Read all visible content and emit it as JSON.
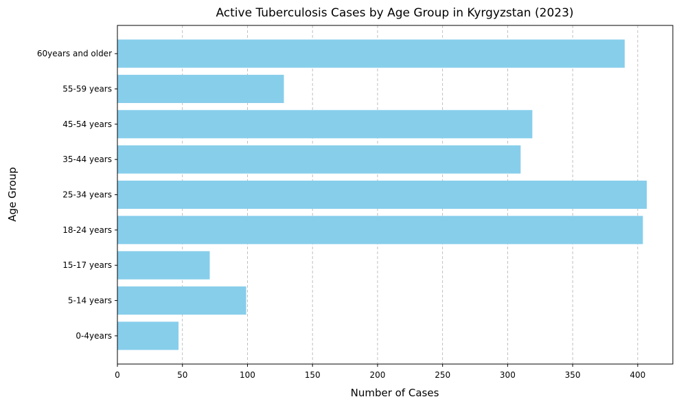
{
  "chart_data": {
    "type": "bar",
    "orientation": "horizontal",
    "title": "Active Tuberculosis Cases by Age Group in Kyrgyzstan (2023)",
    "xlabel": "Number of Cases",
    "ylabel": "Age Group",
    "categories": [
      "0-4years",
      "5-14 years",
      "15-17 years",
      "18-24 years",
      "25-34 years",
      "35-44 years",
      "45-54 years",
      "55-59 years",
      "60years and older"
    ],
    "values": [
      47,
      99,
      71,
      404,
      407,
      310,
      319,
      128,
      390
    ],
    "xlim": [
      0,
      427
    ],
    "xticks": [
      0,
      50,
      100,
      150,
      200,
      250,
      300,
      350,
      400
    ],
    "xtick_labels": [
      "0",
      "50",
      "100",
      "150",
      "200",
      "250",
      "300",
      "350",
      "400"
    ],
    "grid": "x-axis dashed",
    "legend": "none",
    "bar_color": "#87ceeb",
    "grid_color": "#b0b0b0",
    "axis_color": "#000000"
  }
}
